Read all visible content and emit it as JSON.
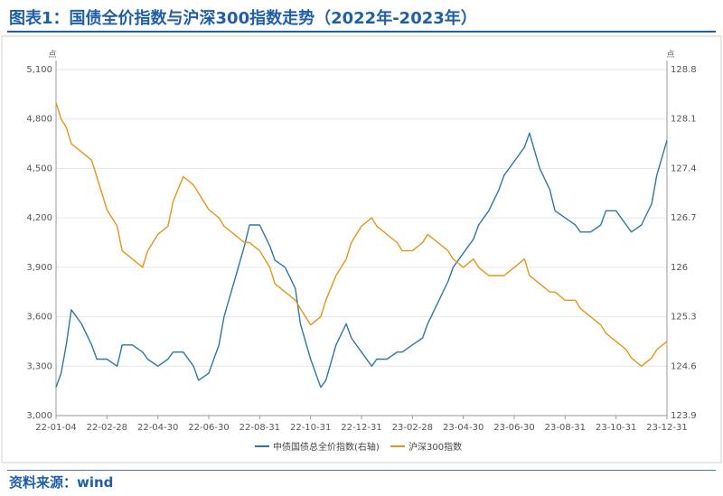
{
  "title": "图表1：国债全价指数与沪深300指数走势（2022年-2023年）",
  "source": "资料来源：wind",
  "chart_data": {
    "type": "line",
    "title": "图表1：国债全价指数与沪深300指数走势（2022年-2023年）",
    "left_axis": {
      "unit": "点",
      "min": 3000,
      "max": 5100,
      "ticks": [
        "5,100",
        "4,800",
        "4,500",
        "4,200",
        "3,900",
        "3,600",
        "3,300",
        "3,000"
      ]
    },
    "right_axis": {
      "unit": "点",
      "min": 123.9,
      "max": 128.8,
      "ticks": [
        "128.8",
        "128.1",
        "127.4",
        "126.7",
        "126",
        "125.3",
        "124.6",
        "123.9"
      ]
    },
    "x_ticks": [
      "22-01-04",
      "22-02-28",
      "22-04-30",
      "22-06-30",
      "22-08-31",
      "22-10-31",
      "22-12-31",
      "23-02-28",
      "23-04-30",
      "23-06-30",
      "23-08-31",
      "23-10-31",
      "23-12-31"
    ],
    "grid": "horizontal",
    "legend_position": "bottom",
    "colors": {
      "bond": "#2e77a8",
      "csi300": "#e8941a"
    },
    "series": [
      {
        "name": "中债国债总全价指数(右轴)",
        "axis": "right",
        "color": "#2e77a8",
        "x": [
          0.0,
          0.1,
          0.2,
          0.3,
          0.5,
          0.7,
          0.8,
          1.0,
          1.2,
          1.3,
          1.5,
          1.7,
          1.8,
          2.0,
          2.2,
          2.3,
          2.5,
          2.7,
          2.8,
          3.0,
          3.2,
          3.3,
          3.5,
          3.7,
          3.8,
          4.0,
          4.2,
          4.3,
          4.5,
          4.7,
          4.8,
          5.0,
          5.2,
          5.3,
          5.5,
          5.7,
          5.8,
          6.0,
          6.2,
          6.3,
          6.5,
          6.7,
          6.8,
          7.0,
          7.2,
          7.3,
          7.5,
          7.7,
          7.8,
          8.0,
          8.2,
          8.3,
          8.5,
          8.7,
          8.8,
          9.0,
          9.2,
          9.3,
          9.5,
          9.7,
          9.8,
          10.0,
          10.2,
          10.3,
          10.5,
          10.7,
          10.8,
          11.0,
          11.2,
          11.3,
          11.5,
          11.7,
          11.8,
          12.0
        ],
        "values": [
          124.3,
          124.5,
          124.9,
          125.4,
          125.2,
          124.9,
          124.7,
          124.7,
          124.6,
          124.9,
          124.9,
          124.8,
          124.7,
          124.6,
          124.7,
          124.8,
          124.8,
          124.6,
          124.4,
          124.5,
          124.9,
          125.3,
          125.8,
          126.3,
          126.6,
          126.6,
          126.3,
          126.1,
          126.0,
          125.7,
          125.2,
          124.7,
          124.3,
          124.4,
          124.9,
          125.2,
          125.0,
          124.8,
          124.6,
          124.7,
          124.7,
          124.8,
          124.8,
          124.9,
          125.0,
          125.2,
          125.5,
          125.8,
          126.0,
          126.2,
          126.4,
          126.6,
          126.8,
          127.1,
          127.3,
          127.5,
          127.7,
          127.9,
          127.4,
          127.1,
          126.8,
          126.7,
          126.6,
          126.5,
          126.5,
          126.6,
          126.8,
          126.8,
          126.6,
          126.5,
          126.6,
          126.9,
          127.3,
          127.8
        ]
      },
      {
        "name": "沪深300指数",
        "axis": "left",
        "color": "#e8941a",
        "x": [
          0.0,
          0.1,
          0.2,
          0.3,
          0.5,
          0.7,
          0.8,
          1.0,
          1.2,
          1.3,
          1.5,
          1.7,
          1.8,
          2.0,
          2.2,
          2.3,
          2.5,
          2.7,
          2.8,
          3.0,
          3.2,
          3.3,
          3.5,
          3.7,
          3.8,
          4.0,
          4.2,
          4.3,
          4.5,
          4.7,
          4.8,
          5.0,
          5.2,
          5.3,
          5.5,
          5.7,
          5.8,
          6.0,
          6.2,
          6.3,
          6.5,
          6.7,
          6.8,
          7.0,
          7.2,
          7.3,
          7.5,
          7.7,
          7.8,
          8.0,
          8.2,
          8.3,
          8.5,
          8.7,
          8.8,
          9.0,
          9.2,
          9.3,
          9.5,
          9.7,
          9.8,
          10.0,
          10.2,
          10.3,
          10.5,
          10.7,
          10.8,
          11.0,
          11.2,
          11.3,
          11.5,
          11.7,
          11.8,
          12.0
        ],
        "values": [
          4900,
          4800,
          4750,
          4650,
          4600,
          4550,
          4450,
          4250,
          4150,
          4000,
          3950,
          3900,
          4000,
          4100,
          4150,
          4300,
          4450,
          4400,
          4350,
          4250,
          4200,
          4150,
          4100,
          4050,
          4050,
          4000,
          3900,
          3800,
          3750,
          3700,
          3650,
          3550,
          3600,
          3700,
          3850,
          3950,
          4050,
          4150,
          4200,
          4150,
          4100,
          4050,
          4000,
          4000,
          4050,
          4100,
          4050,
          4000,
          3950,
          3900,
          3950,
          3900,
          3850,
          3850,
          3850,
          3900,
          3950,
          3850,
          3800,
          3750,
          3750,
          3700,
          3700,
          3650,
          3600,
          3550,
          3500,
          3450,
          3400,
          3350,
          3300,
          3350,
          3400,
          3450
        ]
      }
    ]
  }
}
